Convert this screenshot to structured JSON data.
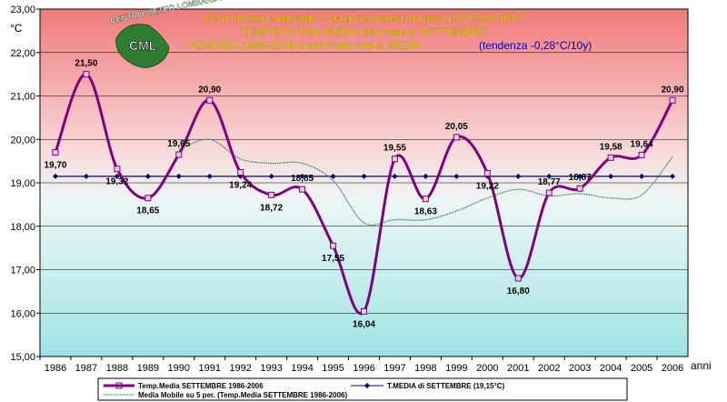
{
  "chart_data": {
    "type": "line",
    "title": "CentroMeteoLombardo - Stazione meteorologica di SPESSA (PV)",
    "subtitle": "TEMPERATURA MEDIA del mese di SETTEMBRE",
    "subtitle2": "PERIODO 1986-2006 e confronto con la MEDIA",
    "trend_note": "(tendenza -0,28°C/10y)",
    "ylabel": "°C",
    "xlabel": "anni",
    "ylim": [
      15,
      23
    ],
    "yticks": [
      "15,00",
      "16,00",
      "17,00",
      "18,00",
      "19,00",
      "20,00",
      "21,00",
      "22,00",
      "23,00"
    ],
    "categories": [
      "1986",
      "1987",
      "1988",
      "1989",
      "1990",
      "1991",
      "1992",
      "1993",
      "1994",
      "1995",
      "1996",
      "1997",
      "1998",
      "1999",
      "2000",
      "2001",
      "2002",
      "2003",
      "2004",
      "2005",
      "2006"
    ],
    "series": [
      {
        "name": "Temp.Media SETTEMBRE 1986-2006",
        "color": "#800080",
        "values": [
          19.7,
          21.5,
          19.32,
          18.65,
          19.65,
          20.9,
          19.24,
          18.72,
          18.85,
          17.55,
          16.04,
          19.55,
          18.63,
          20.05,
          19.22,
          16.8,
          18.77,
          18.87,
          19.58,
          19.64,
          20.9
        ],
        "labels": [
          "19,70",
          "21,50",
          "19,32",
          "18,65",
          "19,65",
          "20,90",
          "19,24",
          "18,72",
          "18,85",
          "17,55",
          "16,04",
          "19,55",
          "18,63",
          "20,05",
          "19,22",
          "16,80",
          "18,77",
          "18,87",
          "19,58",
          "19,64",
          "20,90"
        ]
      },
      {
        "name": "T.MEDIA di SETTEMBRE (19,15°C)",
        "color": "#000080",
        "values": [
          19.15,
          19.15,
          19.15,
          19.15,
          19.15,
          19.15,
          19.15,
          19.15,
          19.15,
          19.15,
          19.15,
          19.15,
          19.15,
          19.15,
          19.15,
          19.15,
          19.15,
          19.15,
          19.15,
          19.15,
          19.15
        ]
      },
      {
        "name": "Media Mobile su 5 per. (Temp.Media SETTEMBRE 1986-2006)",
        "color": "#2e8b57",
        "values": [
          null,
          null,
          null,
          null,
          19.76,
          20.0,
          19.55,
          19.45,
          19.45,
          19.05,
          18.08,
          18.15,
          18.15,
          18.35,
          18.65,
          18.85,
          18.7,
          18.75,
          18.65,
          18.72,
          19.6
        ]
      }
    ],
    "grid": true,
    "legend": "bottom",
    "logo_text": "CentroMeteoLombardo CML"
  }
}
